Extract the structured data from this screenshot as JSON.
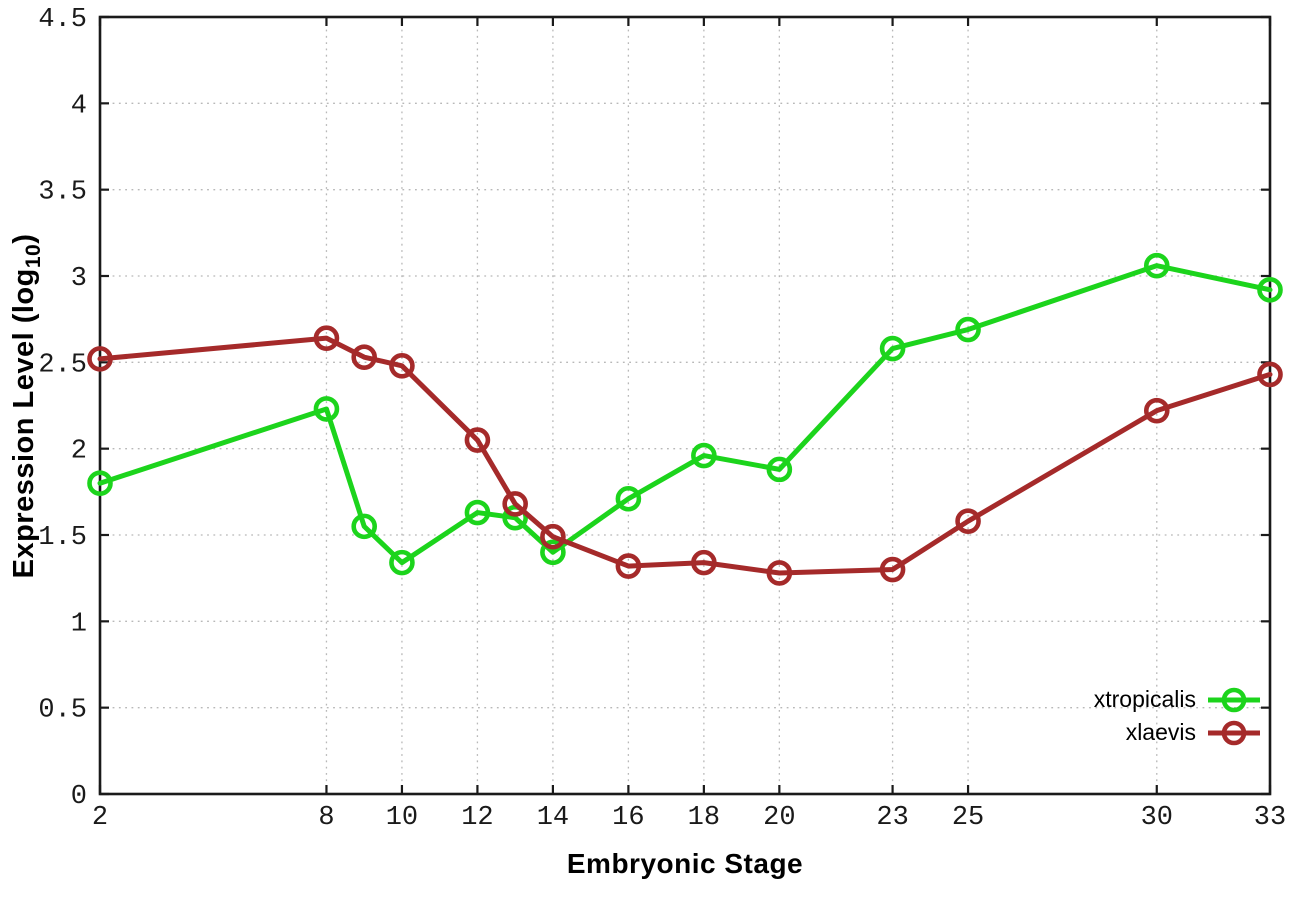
{
  "chart_data": {
    "type": "line",
    "title": "",
    "xlabel": "Embryonic Stage",
    "ylabel": "Expression Level (log10)",
    "ylabel_parts": {
      "prefix": "Expression Level (log",
      "subscript": "10",
      "suffix": ")"
    },
    "xlim": [
      2,
      33
    ],
    "ylim": [
      0,
      4.5
    ],
    "xticks": [
      2,
      8,
      10,
      12,
      14,
      16,
      18,
      20,
      23,
      25,
      30,
      33
    ],
    "yticks": [
      0,
      0.5,
      1,
      1.5,
      2,
      2.5,
      3,
      3.5,
      4,
      4.5
    ],
    "ytick_labels": [
      "0",
      "0.5",
      "1",
      "1.5",
      "2",
      "2.5",
      "3",
      "3.5",
      "4",
      "4.5"
    ],
    "grid": true,
    "legend": {
      "position": "inside-bottom-right",
      "entries": [
        "xtropicalis",
        "xlaevis"
      ]
    },
    "x": [
      2,
      8,
      9,
      10,
      12,
      13,
      14,
      16,
      18,
      20,
      23,
      25,
      30,
      33
    ],
    "series": [
      {
        "name": "xtropicalis",
        "color": "#1cd41c",
        "marker": "open-circle",
        "values": [
          1.8,
          2.23,
          1.55,
          1.34,
          1.63,
          1.6,
          1.4,
          1.71,
          1.96,
          1.88,
          2.58,
          2.69,
          3.06,
          2.92
        ]
      },
      {
        "name": "xlaevis",
        "color": "#a52a2a",
        "marker": "open-circle",
        "values": [
          2.52,
          2.64,
          2.53,
          2.48,
          2.05,
          1.68,
          1.49,
          1.32,
          1.34,
          1.28,
          1.3,
          1.58,
          2.22,
          2.43
        ]
      }
    ],
    "colors": {
      "axis": "#1a1a1a",
      "grid": "#b8b8b8",
      "tick_text": "#1a1a1a",
      "background": "#ffffff"
    }
  }
}
